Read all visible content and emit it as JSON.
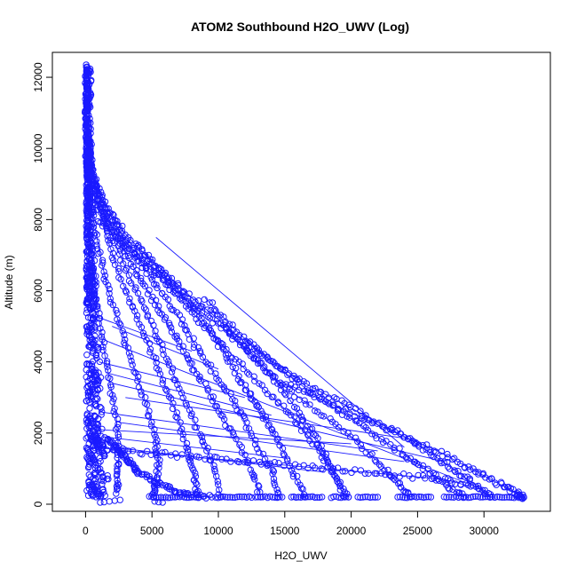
{
  "chart_data": {
    "type": "scatter",
    "title": "ATOM2 Southbound H2O_UWV (Log)",
    "xlabel": "H2O_UWV",
    "ylabel": "Altitude (m)",
    "xlim": [
      -2500,
      35000
    ],
    "ylim": [
      -200,
      12700
    ],
    "x_ticks": [
      0,
      5000,
      10000,
      15000,
      20000,
      25000,
      30000
    ],
    "y_ticks": [
      0,
      2000,
      4000,
      6000,
      8000,
      10000,
      12000
    ],
    "x_tick_labels": [
      "0",
      "5000",
      "10000",
      "15000",
      "20000",
      "25000",
      "30000"
    ],
    "y_tick_labels": [
      "0",
      "2000",
      "4000",
      "6000",
      "8000",
      "10000",
      "12000"
    ],
    "grid": false,
    "marker": "open-circle",
    "color": "#1a1aff",
    "profiles": [
      {
        "x": [
          50,
          60,
          80,
          120,
          200,
          350,
          600,
          900,
          1300,
          1800,
          2300,
          2500,
          2450,
          2300
        ],
        "y": [
          12300,
          11500,
          10500,
          9500,
          8500,
          7500,
          6500,
          5500,
          4500,
          3500,
          2500,
          1500,
          800,
          300
        ]
      },
      {
        "x": [
          50,
          80,
          150,
          300,
          600,
          1100,
          1700,
          2600,
          3500,
          4400,
          5200,
          5500,
          5300,
          5100
        ],
        "y": [
          12000,
          11000,
          10000,
          9000,
          8000,
          7000,
          6000,
          5000,
          4000,
          3000,
          2000,
          1200,
          600,
          200
        ]
      },
      {
        "x": [
          60,
          150,
          400,
          900,
          1600,
          2500,
          3600,
          4700,
          5800,
          6900,
          7700,
          8200,
          8500
        ],
        "y": [
          11500,
          10500,
          9500,
          8500,
          7500,
          6500,
          5500,
          4500,
          3500,
          2500,
          1500,
          800,
          200
        ]
      },
      {
        "x": [
          80,
          250,
          700,
          1500,
          2600,
          3800,
          5000,
          6200,
          7400,
          8600,
          9500,
          10200
        ],
        "y": [
          11000,
          10000,
          9000,
          8000,
          7000,
          6000,
          5000,
          4000,
          3000,
          2000,
          1200,
          200
        ]
      },
      {
        "x": [
          100,
          400,
          1000,
          2000,
          3000,
          4000,
          5200,
          6300,
          7400,
          8500,
          9800,
          11000,
          12500,
          13200
        ],
        "y": [
          10500,
          9500,
          8500,
          7800,
          7100,
          6400,
          5700,
          5000,
          4300,
          3600,
          2800,
          2000,
          1000,
          200
        ]
      },
      {
        "x": [
          200,
          800,
          1800,
          3000,
          4500,
          6000,
          7500,
          8500,
          10000,
          11500,
          12500,
          14000,
          14500
        ],
        "y": [
          9800,
          9000,
          8200,
          7400,
          6600,
          5800,
          5000,
          4300,
          3500,
          2700,
          1900,
          1000,
          200
        ]
      },
      {
        "x": [
          300,
          1500,
          3000,
          5000,
          7000,
          8800,
          10200,
          11500,
          12500,
          13500,
          14500,
          15500,
          16500
        ],
        "y": [
          9200,
          8400,
          7600,
          6800,
          6000,
          5200,
          4400,
          3600,
          3000,
          2400,
          1800,
          1000,
          200
        ]
      },
      {
        "x": [
          500,
          2000,
          4000,
          6000,
          8000,
          10500,
          12500,
          14500,
          16000,
          17500,
          18500,
          19500
        ],
        "y": [
          8600,
          7800,
          7000,
          6300,
          5600,
          4900,
          4200,
          3400,
          2600,
          1800,
          1000,
          200
        ]
      },
      {
        "x": [
          1000,
          3000,
          5500,
          7500,
          9500,
          11500,
          13500,
          15500,
          17000,
          18500,
          19800
        ],
        "y": [
          8000,
          7200,
          6400,
          5600,
          4800,
          4000,
          3200,
          2500,
          1800,
          1000,
          200
        ]
      },
      {
        "x": [
          4000,
          6000,
          8000,
          10000,
          11500,
          13000,
          15000,
          17500,
          20000,
          22000,
          23500,
          24500
        ],
        "y": [
          7200,
          6500,
          5800,
          5200,
          4600,
          4000,
          3300,
          2600,
          1900,
          1200,
          600,
          200
        ]
      },
      {
        "x": [
          9000,
          11000,
          13000,
          15000,
          17500,
          20000,
          22000,
          24000,
          25500,
          27000,
          28500
        ],
        "y": [
          5800,
          5000,
          4300,
          3700,
          3000,
          2400,
          1900,
          1400,
          1000,
          600,
          200
        ]
      },
      {
        "x": [
          12000,
          14500,
          17000,
          19500,
          22000,
          24500,
          26500,
          28000,
          29500,
          30500
        ],
        "y": [
          4600,
          3900,
          3300,
          2800,
          2300,
          1800,
          1300,
          900,
          500,
          200
        ]
      },
      {
        "x": [
          15000,
          18000,
          21000,
          24000,
          26500,
          28500,
          30000,
          31500,
          32500,
          33000
        ],
        "y": [
          3400,
          2900,
          2400,
          1900,
          1500,
          1100,
          800,
          500,
          300,
          200
        ]
      },
      {
        "x": [
          800,
          3000,
          6000,
          9000,
          12000,
          15000,
          18000,
          21000,
          24000,
          27000,
          29000
        ],
        "y": [
          1600,
          1500,
          1400,
          1300,
          1200,
          1100,
          1000,
          900,
          800,
          700,
          500
        ]
      },
      {
        "x": [
          1500,
          2000,
          2500,
          3000,
          3500,
          4000,
          5000,
          6000,
          7000,
          8000,
          9500
        ],
        "y": [
          1900,
          1700,
          1500,
          1300,
          1100,
          900,
          700,
          500,
          350,
          250,
          200
        ]
      }
    ],
    "baseline_clusters": [
      {
        "x_from": 4800,
        "x_to": 8500,
        "y": 200
      },
      {
        "x_from": 9800,
        "x_to": 12500,
        "y": 200
      },
      {
        "x_from": 12800,
        "x_to": 14800,
        "y": 200
      },
      {
        "x_from": 15500,
        "x_to": 17800,
        "y": 200
      },
      {
        "x_from": 18500,
        "x_to": 19800,
        "y": 200
      },
      {
        "x_from": 20500,
        "x_to": 22000,
        "y": 200
      },
      {
        "x_from": 23500,
        "x_to": 26000,
        "y": 200
      },
      {
        "x_from": 27000,
        "x_to": 33000,
        "y": 200
      }
    ],
    "low_points": [
      {
        "x": 1100,
        "y": 50
      },
      {
        "x": 1400,
        "y": 60
      },
      {
        "x": 1800,
        "y": 80
      },
      {
        "x": 2200,
        "y": 100
      },
      {
        "x": 2600,
        "y": 120
      },
      {
        "x": 5200,
        "y": 80
      },
      {
        "x": 5500,
        "y": 60
      },
      {
        "x": 5800,
        "y": 50
      }
    ],
    "connector_lines": [
      {
        "x": [
          5300,
          24000
        ],
        "y": [
          7500,
          1600
        ]
      },
      {
        "x": [
          1500,
          30000
        ],
        "y": [
          4600,
          400
        ]
      },
      {
        "x": [
          2000,
          27000
        ],
        "y": [
          3400,
          1200
        ]
      },
      {
        "x": [
          3000,
          25000
        ],
        "y": [
          3000,
          1800
        ]
      },
      {
        "x": [
          1000,
          22000
        ],
        "y": [
          2600,
          1500
        ]
      },
      {
        "x": [
          2500,
          24000
        ],
        "y": [
          2300,
          1200
        ]
      },
      {
        "x": [
          800,
          20000
        ],
        "y": [
          2100,
          1700
        ]
      },
      {
        "x": [
          1200,
          15000
        ],
        "y": [
          1900,
          1300
        ]
      },
      {
        "x": [
          2000,
          18000
        ],
        "y": [
          1600,
          900
        ]
      },
      {
        "x": [
          1000,
          12000
        ],
        "y": [
          4000,
          3000
        ]
      },
      {
        "x": [
          1500,
          14000
        ],
        "y": [
          3700,
          2500
        ]
      },
      {
        "x": [
          600,
          8000
        ],
        "y": [
          5300,
          4300
        ]
      },
      {
        "x": [
          2000,
          10000
        ],
        "y": [
          5000,
          3800
        ]
      }
    ]
  }
}
